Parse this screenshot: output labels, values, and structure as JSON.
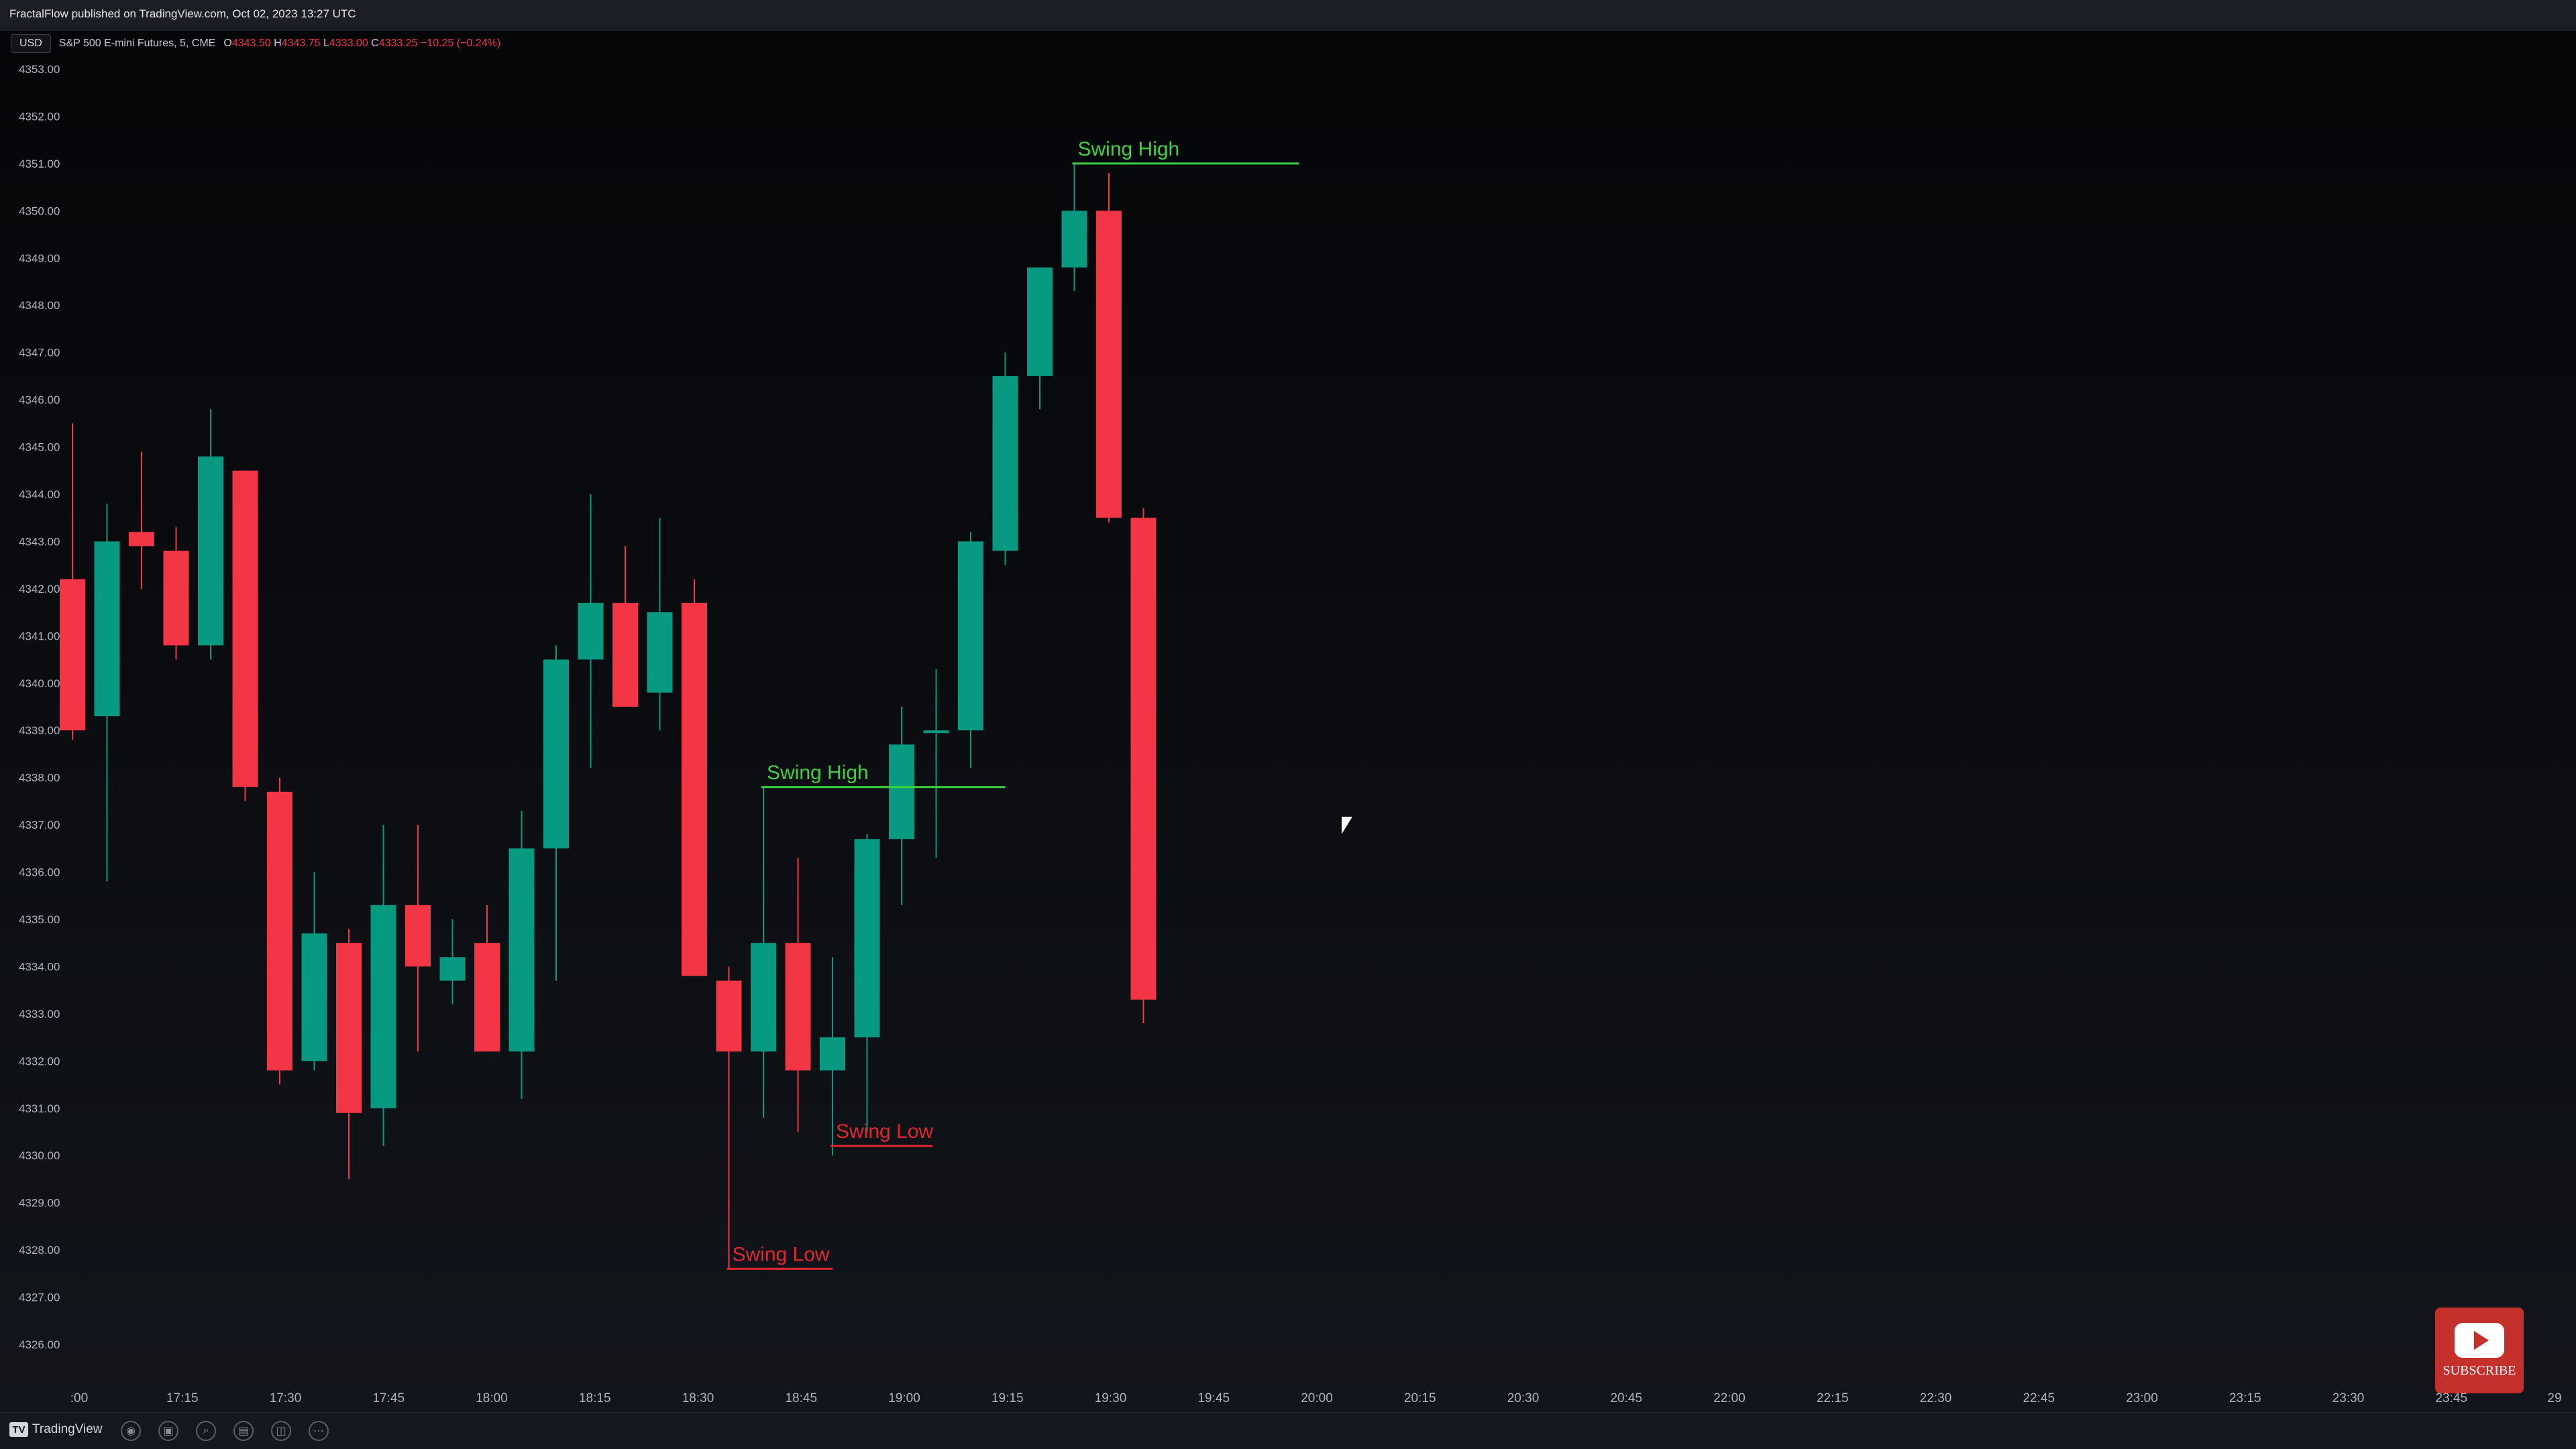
{
  "header": {
    "published": "FractalFlow published on TradingView.com, Oct 02, 2023 13:27 UTC"
  },
  "legend": {
    "currency": "USD",
    "symbol": "S&P 500 E-mini Futures, 5, CME",
    "o_label": "O",
    "o_val": "4343.50",
    "h_label": "H",
    "h_val": "4343.75",
    "l_label": "L",
    "l_val": "4333.00",
    "c_label": "C",
    "c_val": "4333.25",
    "change": "−10.25 (−0.24%)"
  },
  "colors": {
    "up": "#089981",
    "down": "#f23645",
    "swing_high": "#3ed33e",
    "swing_low": "#e0262f",
    "axis_text": "#b2b5be"
  },
  "chart_data": {
    "type": "candlestick",
    "title": "S&P 500 E-mini Futures, 5, CME",
    "ylim": [
      4325.6,
      4353.2
    ],
    "y_ticks": [
      "4353.00",
      "4352.00",
      "4351.00",
      "4350.00",
      "4349.00",
      "4348.00",
      "4347.00",
      "4346.00",
      "4345.00",
      "4344.00",
      "4343.00",
      "4342.00",
      "4341.00",
      "4340.00",
      "4339.00",
      "4338.00",
      "4337.00",
      "4336.00",
      "4335.00",
      "4334.00",
      "4333.00",
      "4332.00",
      "4331.00",
      "4330.00",
      "4329.00",
      "4328.00",
      "4327.00",
      "4326.00"
    ],
    "x_ticks": [
      ":00",
      "17:15",
      "17:30",
      "17:45",
      "18:00",
      "18:15",
      "18:30",
      "18:45",
      "19:00",
      "19:15",
      "19:30",
      "19:45",
      "20:00",
      "20:15",
      "20:30",
      "20:45",
      "22:00",
      "22:15",
      "22:30",
      "22:45",
      "23:00",
      "23:15",
      "23:30",
      "23:45",
      "29"
    ],
    "candles": [
      {
        "o": 4342.2,
        "h": 4345.5,
        "l": 4338.8,
        "c": 4339.0
      },
      {
        "o": 4339.3,
        "h": 4343.8,
        "l": 4335.8,
        "c": 4343.0
      },
      {
        "o": 4343.2,
        "h": 4344.9,
        "l": 4342.0,
        "c": 4342.9
      },
      {
        "o": 4342.8,
        "h": 4343.3,
        "l": 4340.5,
        "c": 4340.8
      },
      {
        "o": 4340.8,
        "h": 4345.8,
        "l": 4340.5,
        "c": 4344.8
      },
      {
        "o": 4344.5,
        "h": 4344.5,
        "l": 4337.5,
        "c": 4337.8
      },
      {
        "o": 4337.7,
        "h": 4338.0,
        "l": 4331.5,
        "c": 4331.8
      },
      {
        "o": 4332.0,
        "h": 4336.0,
        "l": 4331.8,
        "c": 4334.7
      },
      {
        "o": 4334.5,
        "h": 4334.8,
        "l": 4329.5,
        "c": 4330.9
      },
      {
        "o": 4331.0,
        "h": 4337.0,
        "l": 4330.2,
        "c": 4335.3
      },
      {
        "o": 4335.3,
        "h": 4337.0,
        "l": 4332.2,
        "c": 4334.0
      },
      {
        "o": 4333.7,
        "h": 4335.0,
        "l": 4333.2,
        "c": 4334.2
      },
      {
        "o": 4334.5,
        "h": 4335.3,
        "l": 4332.2,
        "c": 4332.2
      },
      {
        "o": 4332.2,
        "h": 4337.3,
        "l": 4331.2,
        "c": 4336.5
      },
      {
        "o": 4336.5,
        "h": 4340.8,
        "l": 4333.7,
        "c": 4340.5
      },
      {
        "o": 4340.5,
        "h": 4344.0,
        "l": 4338.2,
        "c": 4341.7
      },
      {
        "o": 4341.7,
        "h": 4342.9,
        "l": 4339.5,
        "c": 4339.5
      },
      {
        "o": 4339.8,
        "h": 4343.5,
        "l": 4339.0,
        "c": 4341.5
      },
      {
        "o": 4341.7,
        "h": 4342.2,
        "l": 4333.8,
        "c": 4333.8
      },
      {
        "o": 4333.7,
        "h": 4334.0,
        "l": 4327.6,
        "c": 4332.2
      },
      {
        "o": 4332.2,
        "h": 4337.8,
        "l": 4330.8,
        "c": 4334.5
      },
      {
        "o": 4334.5,
        "h": 4336.3,
        "l": 4330.5,
        "c": 4331.8
      },
      {
        "o": 4331.8,
        "h": 4334.2,
        "l": 4330.0,
        "c": 4332.5
      },
      {
        "o": 4332.5,
        "h": 4336.8,
        "l": 4330.5,
        "c": 4336.7
      },
      {
        "o": 4336.7,
        "h": 4339.5,
        "l": 4335.3,
        "c": 4338.7
      },
      {
        "o": 4339.0,
        "h": 4340.3,
        "l": 4336.3,
        "c": 4339.0
      },
      {
        "o": 4339.0,
        "h": 4343.2,
        "l": 4338.2,
        "c": 4343.0
      },
      {
        "o": 4342.8,
        "h": 4347.0,
        "l": 4342.5,
        "c": 4346.5
      },
      {
        "o": 4346.5,
        "h": 4348.8,
        "l": 4345.8,
        "c": 4348.8
      },
      {
        "o": 4348.8,
        "h": 4351.0,
        "l": 4348.3,
        "c": 4350.0
      },
      {
        "o": 4350.0,
        "h": 4350.8,
        "l": 4343.4,
        "c": 4343.5
      },
      {
        "o": 4343.5,
        "h": 4343.7,
        "l": 4332.8,
        "c": 4333.3
      }
    ],
    "annotations": [
      {
        "label": "Swing High",
        "kind": "high",
        "price": 4351.0,
        "from": 29,
        "to": 35.5
      },
      {
        "label": "Swing High",
        "kind": "high",
        "price": 4337.8,
        "from": 20,
        "to": 27.0
      },
      {
        "label": "Swing Low",
        "kind": "low",
        "price": 4330.2,
        "from": 22,
        "to": 24.9
      },
      {
        "label": "Swing Low",
        "kind": "low",
        "price": 4327.6,
        "from": 19,
        "to": 22.0
      }
    ]
  },
  "toolbar": {
    "brand": "TradingView",
    "icons": [
      "chart-type-icon",
      "camera-icon",
      "drawing-icon",
      "layout-icon",
      "search-icon",
      "calendar-icon",
      "compare-icon",
      "more-icon"
    ]
  },
  "youtube": {
    "label": "SUBSCRIBE"
  }
}
